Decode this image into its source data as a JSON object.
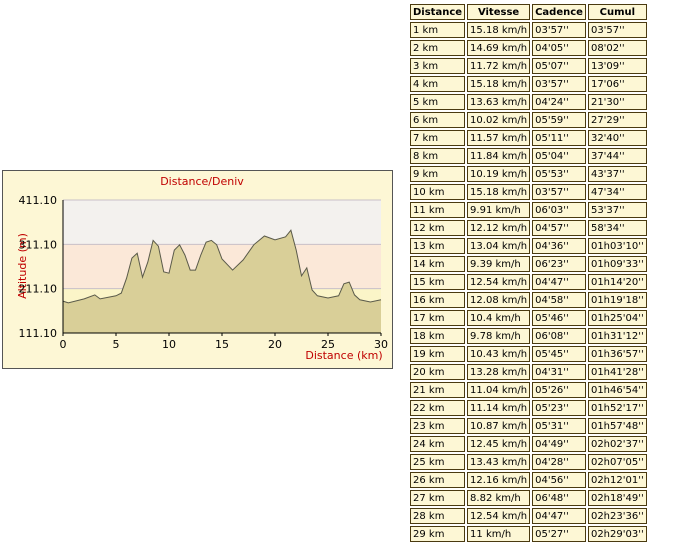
{
  "chart_data": {
    "type": "area",
    "title": "Distance/Deniv",
    "xlabel": "Distance (km)",
    "ylabel": "Altitude (m)",
    "xlim": [
      0,
      30
    ],
    "xticks": [
      0,
      5,
      10,
      15,
      20,
      25,
      30
    ],
    "ylim": [
      111.1,
      411.1
    ],
    "yticks": [
      {
        "value": 111.1,
        "label": "111.10"
      },
      {
        "value": 211.1,
        "label": "211.10"
      },
      {
        "value": 311.1,
        "label": "311.10"
      },
      {
        "value": 411.1,
        "label": "411.10"
      }
    ],
    "x": [
      0,
      0.5,
      2,
      3,
      3.5,
      5,
      5.5,
      6,
      6.5,
      7,
      7.5,
      8,
      8.5,
      9,
      9.5,
      10,
      10.5,
      11,
      11.5,
      12,
      12.5,
      13,
      13.5,
      14,
      14.5,
      15,
      16,
      17,
      18,
      19,
      20,
      21,
      21.5,
      22,
      22.5,
      23,
      23.5,
      24,
      25,
      26,
      26.5,
      27,
      27.5,
      28,
      29,
      30
    ],
    "values": [
      183,
      179,
      188,
      197,
      188,
      195,
      201,
      235,
      280,
      291,
      237,
      271,
      320,
      307,
      249,
      246,
      298,
      310,
      287,
      253,
      253,
      287,
      316,
      320,
      310,
      278,
      253,
      276,
      310,
      330,
      321,
      328,
      343,
      298,
      240,
      258,
      208,
      195,
      190,
      195,
      222,
      226,
      197,
      186,
      181,
      186
    ],
    "color": "#d9cf98",
    "line_color": "#5a5a4a",
    "band_colors": [
      "#fbf5c8",
      "#fbe8d8",
      "#f3f1ee"
    ]
  },
  "table": {
    "headers": [
      "Distance",
      "Vitesse",
      "Cadence",
      "Cumul"
    ],
    "rows": [
      [
        "1 km",
        "15.18 km/h",
        "03'57''",
        "03'57''"
      ],
      [
        "2 km",
        "14.69 km/h",
        "04'05''",
        "08'02''"
      ],
      [
        "3 km",
        "11.72 km/h",
        "05'07''",
        "13'09''"
      ],
      [
        "4 km",
        "15.18 km/h",
        "03'57''",
        "17'06''"
      ],
      [
        "5 km",
        "13.63 km/h",
        "04'24''",
        "21'30''"
      ],
      [
        "6 km",
        "10.02 km/h",
        "05'59''",
        "27'29''"
      ],
      [
        "7 km",
        "11.57 km/h",
        "05'11''",
        "32'40''"
      ],
      [
        "8 km",
        "11.84 km/h",
        "05'04''",
        "37'44''"
      ],
      [
        "9 km",
        "10.19 km/h",
        "05'53''",
        "43'37''"
      ],
      [
        "10 km",
        "15.18 km/h",
        "03'57''",
        "47'34''"
      ],
      [
        "11 km",
        "9.91 km/h",
        "06'03''",
        "53'37''"
      ],
      [
        "12 km",
        "12.12 km/h",
        "04'57''",
        "58'34''"
      ],
      [
        "13 km",
        "13.04 km/h",
        "04'36''",
        "01h03'10''"
      ],
      [
        "14 km",
        "9.39 km/h",
        "06'23''",
        "01h09'33''"
      ],
      [
        "15 km",
        "12.54 km/h",
        "04'47''",
        "01h14'20''"
      ],
      [
        "16 km",
        "12.08 km/h",
        "04'58''",
        "01h19'18''"
      ],
      [
        "17 km",
        "10.4 km/h",
        "05'46''",
        "01h25'04''"
      ],
      [
        "18 km",
        "9.78 km/h",
        "06'08''",
        "01h31'12''"
      ],
      [
        "19 km",
        "10.43 km/h",
        "05'45''",
        "01h36'57''"
      ],
      [
        "20 km",
        "13.28 km/h",
        "04'31''",
        "01h41'28''"
      ],
      [
        "21 km",
        "11.04 km/h",
        "05'26''",
        "01h46'54''"
      ],
      [
        "22 km",
        "11.14 km/h",
        "05'23''",
        "01h52'17''"
      ],
      [
        "23 km",
        "10.87 km/h",
        "05'31''",
        "01h57'48''"
      ],
      [
        "24 km",
        "12.45 km/h",
        "04'49''",
        "02h02'37''"
      ],
      [
        "25 km",
        "13.43 km/h",
        "04'28''",
        "02h07'05''"
      ],
      [
        "26 km",
        "12.16 km/h",
        "04'56''",
        "02h12'01''"
      ],
      [
        "27 km",
        "8.82 km/h",
        "06'48''",
        "02h18'49''"
      ],
      [
        "28 km",
        "12.54 km/h",
        "04'47''",
        "02h23'36''"
      ],
      [
        "29 km",
        "11 km/h",
        "05'27''",
        "02h29'03''"
      ]
    ]
  }
}
